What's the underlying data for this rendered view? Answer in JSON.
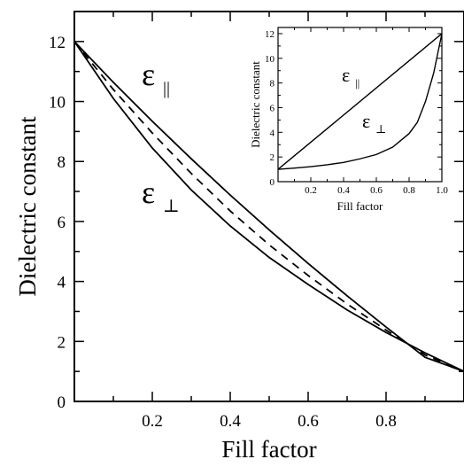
{
  "chart_data": [
    {
      "type": "line",
      "panel": "main",
      "xlabel": "Fill factor",
      "ylabel": "Dielectric constant",
      "xlim": [
        0,
        1
      ],
      "ylim": [
        0,
        13
      ],
      "x_ticks": [
        "0.2",
        "0.4",
        "0.6",
        "0.8"
      ],
      "y_ticks": [
        "0",
        "2",
        "4",
        "6",
        "8",
        "10",
        "12"
      ],
      "grid": false,
      "series": [
        {
          "name": "ε∥",
          "label_main": "ε",
          "label_sub": "||",
          "style": "solid",
          "x": [
            0,
            0.1,
            0.2,
            0.3,
            0.4,
            0.5,
            0.6,
            0.7,
            0.8,
            0.9,
            1.0
          ],
          "y": [
            12,
            10.64,
            9.34,
            8.09,
            6.88,
            5.72,
            4.6,
            3.52,
            2.48,
            1.47,
            1.0
          ]
        },
        {
          "name": "ε⊥",
          "label_main": "ε",
          "label_sub": "⊥",
          "style": "solid",
          "x": [
            0,
            0.1,
            0.2,
            0.3,
            0.4,
            0.5,
            0.6,
            0.7,
            0.8,
            0.9,
            1.0
          ],
          "y": [
            12,
            10.1,
            8.45,
            7.05,
            5.85,
            4.8,
            3.9,
            3.05,
            2.3,
            1.62,
            1.0
          ]
        },
        {
          "name": "",
          "style": "dashed",
          "x": [
            0,
            0.1,
            0.2,
            0.3,
            0.4,
            0.5,
            0.6,
            0.7,
            0.8,
            0.9,
            1.0
          ],
          "y": [
            12,
            10.4,
            8.95,
            7.6,
            6.35,
            5.22,
            4.2,
            3.25,
            2.38,
            1.55,
            1.0
          ]
        }
      ]
    },
    {
      "type": "line",
      "panel": "inset",
      "xlabel": "Fill factor",
      "ylabel": "Dielectric constant",
      "xlim": [
        0,
        1
      ],
      "ylim": [
        0,
        12.5
      ],
      "x_ticks": [
        "0.2",
        "0.4",
        "0.6",
        "0.8",
        "1.0"
      ],
      "y_ticks": [
        "0",
        "2",
        "4",
        "6",
        "8",
        "10",
        "12"
      ],
      "grid": false,
      "series": [
        {
          "name": "ε∥",
          "label_main": "ε",
          "label_sub": "||",
          "style": "solid",
          "x": [
            0,
            1
          ],
          "y": [
            1,
            12
          ]
        },
        {
          "name": "ε⊥",
          "label_main": "ε",
          "label_sub": "⊥",
          "style": "solid",
          "x": [
            0,
            0.1,
            0.2,
            0.3,
            0.4,
            0.5,
            0.6,
            0.7,
            0.8,
            0.85,
            0.9,
            0.95,
            1.0
          ],
          "y": [
            1,
            1.1,
            1.22,
            1.37,
            1.56,
            1.85,
            2.2,
            2.8,
            3.9,
            4.8,
            6.5,
            8.8,
            12
          ]
        }
      ]
    }
  ]
}
